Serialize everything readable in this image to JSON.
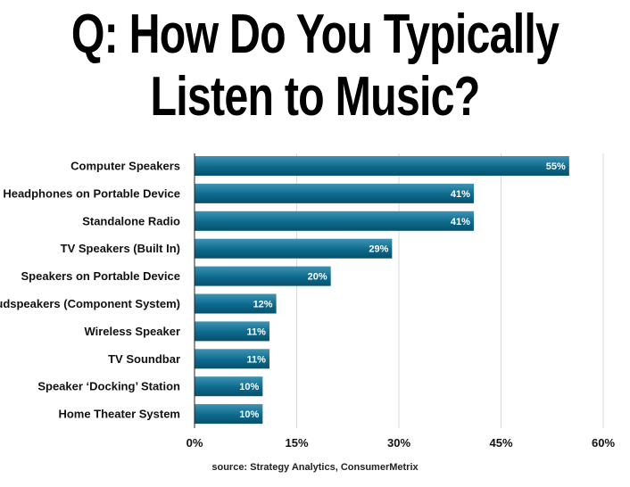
{
  "chart_data": {
    "type": "bar",
    "orientation": "horizontal",
    "title": "Q: How Do You Typically Listen to Music?",
    "categories": [
      "Computer Speakers",
      "Headphones on Portable Device",
      "Standalone Radio",
      "TV Speakers (Built In)",
      "Speakers on Portable Device",
      "Loudspeakers (Component System)",
      "Wireless Speaker",
      "TV Soundbar",
      "Speaker ‘Docking’ Station",
      "Home Theater System"
    ],
    "values": [
      55,
      41,
      41,
      29,
      20,
      12,
      11,
      11,
      10,
      10
    ],
    "data_labels": [
      "55%",
      "41%",
      "41%",
      "29%",
      "20%",
      "12%",
      "11%",
      "11%",
      "10%",
      "10%"
    ],
    "xlim": [
      0,
      60
    ],
    "xticks": [
      0,
      15,
      30,
      45,
      60
    ],
    "xtick_labels": [
      "0%",
      "15%",
      "30%",
      "45%",
      "60%"
    ],
    "grid": "vertical",
    "legend": "none",
    "bar_color": "#0d6a8c",
    "xlabel": "",
    "ylabel": ""
  },
  "source": "source: Strategy Analytics, ConsumerMetrix"
}
